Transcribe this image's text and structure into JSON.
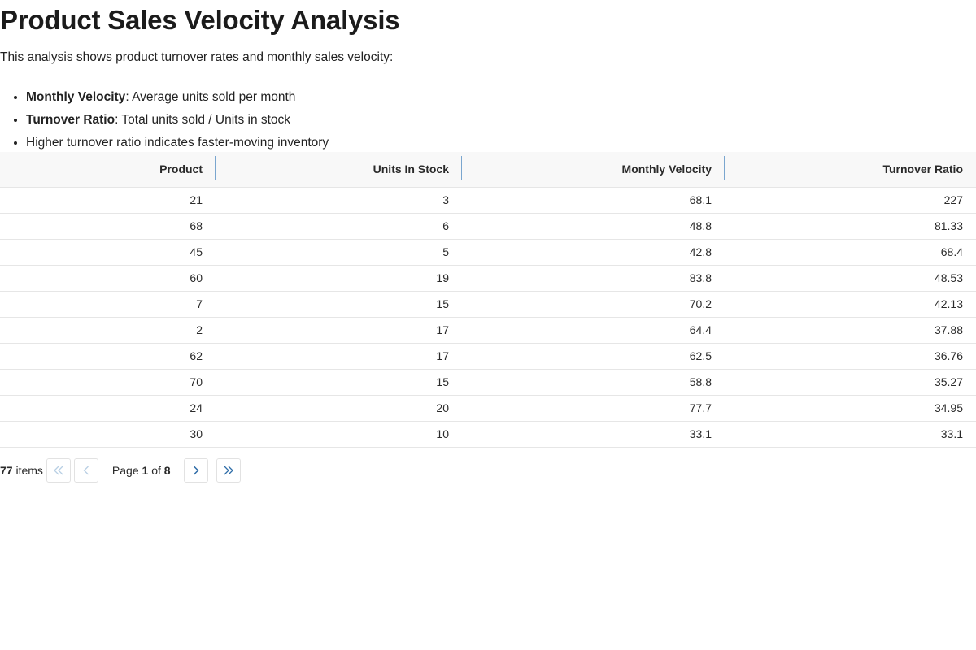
{
  "title": "Product Sales Velocity Analysis",
  "intro": "This analysis shows product turnover rates and monthly sales velocity:",
  "notes": [
    {
      "term": "Monthly Velocity",
      "desc": ": Average units sold per month"
    },
    {
      "term": "Turnover Ratio",
      "desc": ": Total units sold / Units in stock"
    },
    {
      "term": "",
      "desc": "Higher turnover ratio indicates faster-moving inventory"
    }
  ],
  "table": {
    "columns": [
      "Product",
      "Units In Stock",
      "Monthly Velocity",
      "Turnover Ratio"
    ],
    "rows": [
      [
        "21",
        "3",
        "68.1",
        "227"
      ],
      [
        "68",
        "6",
        "48.8",
        "81.33"
      ],
      [
        "45",
        "5",
        "42.8",
        "68.4"
      ],
      [
        "60",
        "19",
        "83.8",
        "48.53"
      ],
      [
        "7",
        "15",
        "70.2",
        "42.13"
      ],
      [
        "2",
        "17",
        "64.4",
        "37.88"
      ],
      [
        "62",
        "17",
        "62.5",
        "36.76"
      ],
      [
        "70",
        "15",
        "58.8",
        "35.27"
      ],
      [
        "24",
        "20",
        "77.7",
        "34.95"
      ],
      [
        "30",
        "10",
        "33.1",
        "33.1"
      ]
    ]
  },
  "pager": {
    "total": "77",
    "items_label": "items",
    "page_word": "Page",
    "current": "1",
    "of_word": "of",
    "pages": "8",
    "first_icon": "double-chevron-left-icon",
    "prev_icon": "chevron-left-icon",
    "next_icon": "chevron-right-icon",
    "last_icon": "double-chevron-right-icon"
  },
  "colors": {
    "separator": "#7aa6cf",
    "header_bg": "#f8f8f8",
    "pager_enabled": "#2f6da8",
    "pager_disabled": "#b8cfe4"
  }
}
